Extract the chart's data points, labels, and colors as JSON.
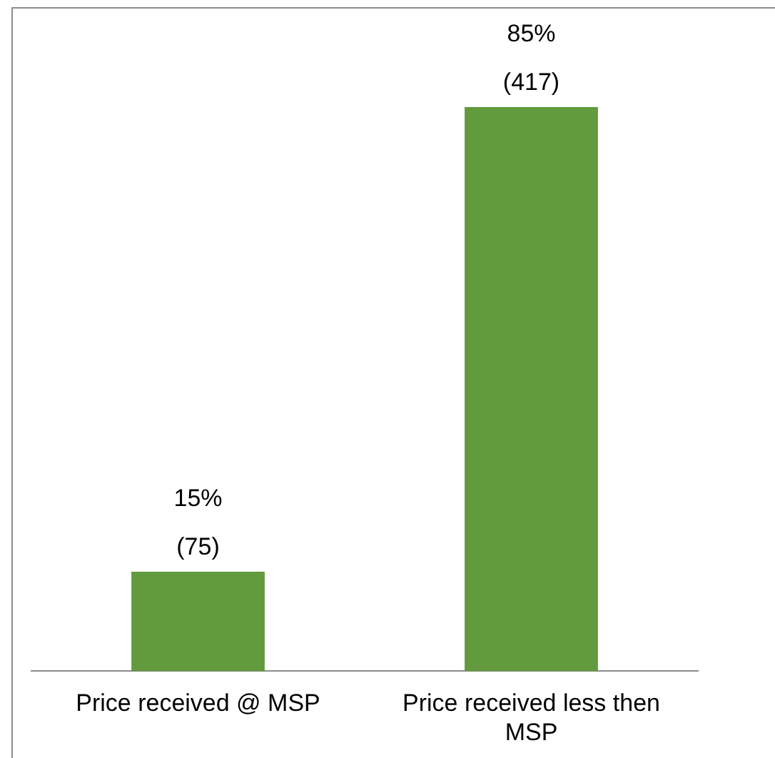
{
  "chart_data": {
    "type": "bar",
    "categories": [
      "Price received @ MSP",
      "Price received less then MSP"
    ],
    "values": [
      15,
      85
    ],
    "value_labels": [
      "15%\n(75)",
      "85%\n(417)"
    ],
    "color": "#629a3e",
    "grid": false,
    "legend": false
  }
}
